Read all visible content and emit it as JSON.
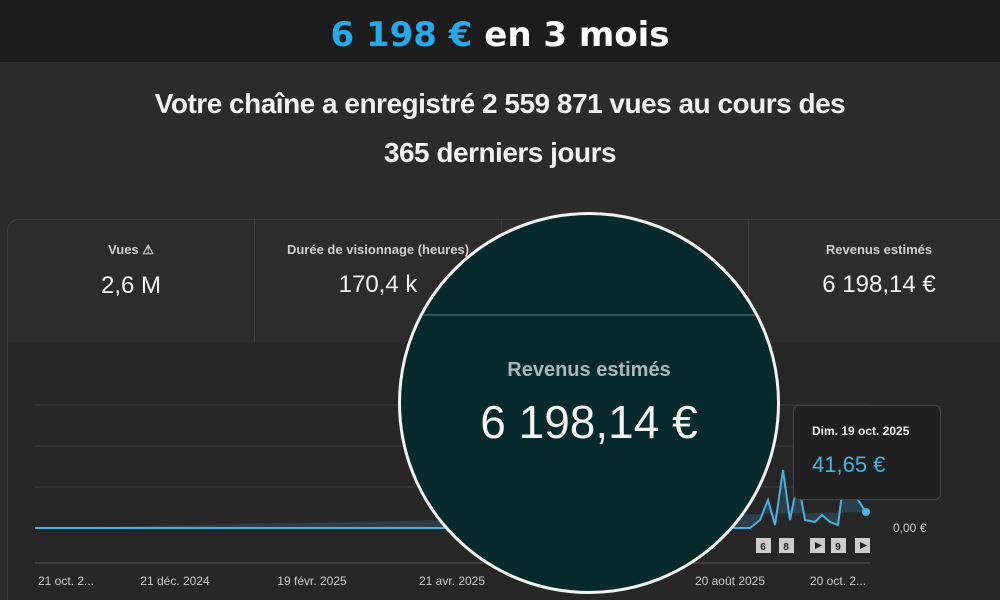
{
  "banner": {
    "amount": "6 198 €",
    "period": "en 3 mois"
  },
  "headline": {
    "line1": "Votre chaîne a enregistré 2 559 871 vues au cours des",
    "line2": "365 derniers jours"
  },
  "metrics": [
    {
      "label": "Vues",
      "value": "2,6 M"
    },
    {
      "label": "Durée de visionnage (heures)",
      "value": "170,4 k"
    },
    {
      "label": "Revenus estimés",
      "value": "6 198,14 €"
    }
  ],
  "magnifier": {
    "label": "Revenus estimés",
    "value": "6 198,14 €"
  },
  "tooltip": {
    "date": "Dim. 19 oct. 2025",
    "value": "41,65 €"
  },
  "chart": {
    "y_label": "0,00 €",
    "x_labels": [
      "21 oct. 2...",
      "21 déc. 2024",
      "19 févr. 2025",
      "21 avr. 2025",
      "20 août 2025",
      "20 oct. 2..."
    ],
    "badges": [
      "6",
      "8",
      "9"
    ]
  }
}
